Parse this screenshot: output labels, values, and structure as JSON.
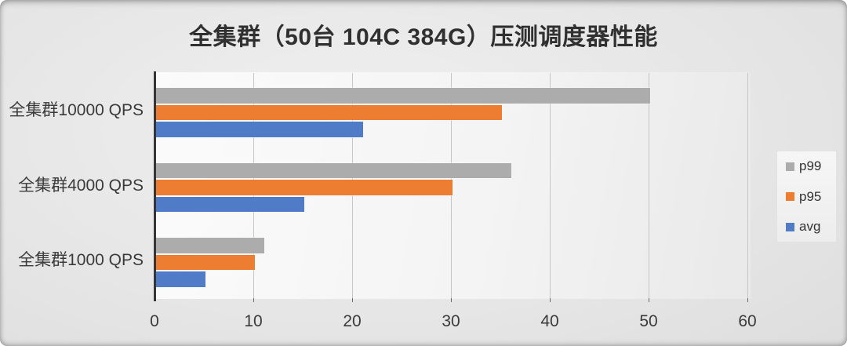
{
  "chart": {
    "title": "全集群（50台 104C 384G）压测调度器性能"
  },
  "chart_data": {
    "type": "bar",
    "orientation": "horizontal",
    "title": "全集群（50台 104C 384G）压测调度器性能",
    "categories": [
      "全集群10000 QPS",
      "全集群4000 QPS",
      "全集群1000 QPS"
    ],
    "series": [
      {
        "name": "p99",
        "color": "#ACACAC",
        "values": [
          50,
          36,
          11
        ]
      },
      {
        "name": "p95",
        "color": "#ED7D31",
        "values": [
          35,
          30,
          10
        ]
      },
      {
        "name": "avg",
        "color": "#4F7BC7",
        "values": [
          21,
          15,
          5
        ]
      }
    ],
    "xlabel": "",
    "ylabel": "",
    "xlim": [
      0,
      60
    ],
    "xticks": [
      0,
      10,
      20,
      30,
      40,
      50,
      60
    ],
    "grid": true,
    "legend_position": "right",
    "legend_order": [
      "p99",
      "p95",
      "avg"
    ],
    "colors": {
      "gridline": "#c6c6c6",
      "axis": "#353535",
      "text": "#3a3a3a",
      "plot_background": "#f4f4f4",
      "page_background": "#e0e0e0"
    }
  }
}
